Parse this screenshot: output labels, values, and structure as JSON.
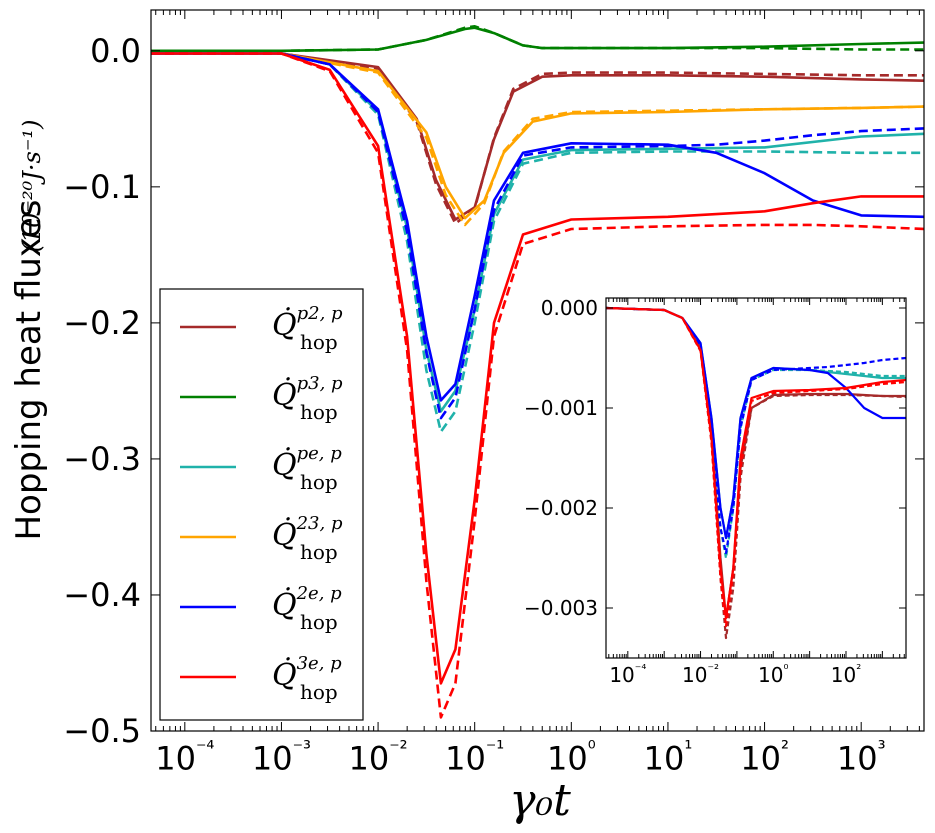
{
  "chart_data": [
    {
      "type": "line",
      "xscale": "log",
      "xlim_log10": [
        -4.35,
        3.65
      ],
      "ylim": [
        -0.5,
        0.03
      ],
      "xlabel": "γ₀t",
      "ylabel": "Hopping heat fluxes",
      "ylabel_units": "(10⁻²⁰J·s⁻¹)",
      "xticks_log10": [
        -4,
        -3,
        -2,
        -1,
        0,
        1,
        2,
        3
      ],
      "xtick_labels": [
        "10⁻⁴",
        "10⁻³",
        "10⁻²",
        "10⁻¹",
        "10⁰",
        "10¹",
        "10²",
        "10³"
      ],
      "yticks": [
        0.0,
        -0.1,
        -0.2,
        -0.3,
        -0.4,
        -0.5
      ],
      "ytick_labels": [
        "0.0",
        "−0.1",
        "−0.2",
        "−0.3",
        "−0.4",
        "−0.5"
      ],
      "legend_position": "lower-left",
      "legend_base": "Q̇",
      "legend_sub": "hop",
      "line_styles": [
        "solid",
        "dashed"
      ],
      "series": [
        {
          "name": "Q̇_hop^{p2,p}",
          "sup": "p2, p",
          "color": "#a52a2a",
          "x_log10": [
            -4.35,
            -3.0,
            -2.0,
            -1.6,
            -1.4,
            -1.2,
            -1.0,
            -0.8,
            -0.6,
            -0.3,
            0.0,
            1.0,
            2.0,
            3.0,
            3.65
          ],
          "solid": [
            -0.002,
            -0.002,
            -0.012,
            -0.05,
            -0.095,
            -0.124,
            -0.115,
            -0.065,
            -0.03,
            -0.019,
            -0.018,
            -0.018,
            -0.019,
            -0.021,
            -0.022
          ],
          "dashed": [
            -0.002,
            -0.002,
            -0.013,
            -0.052,
            -0.098,
            -0.127,
            -0.116,
            -0.064,
            -0.028,
            -0.017,
            -0.016,
            -0.016,
            -0.017,
            -0.018,
            -0.018
          ]
        },
        {
          "name": "Q̇_hop^{p3,p}",
          "sup": "p3, p",
          "color": "#008000",
          "x_log10": [
            -4.35,
            -3.0,
            -2.0,
            -1.5,
            -1.1,
            -1.0,
            -0.8,
            -0.5,
            -0.3,
            0.0,
            1.0,
            2.0,
            3.0,
            3.65
          ],
          "solid": [
            0.0,
            0.0,
            0.001,
            0.008,
            0.016,
            0.017,
            0.013,
            0.004,
            0.002,
            0.002,
            0.002,
            0.003,
            0.005,
            0.006
          ],
          "dashed": [
            0.0,
            0.0,
            0.001,
            0.008,
            0.017,
            0.018,
            0.013,
            0.004,
            0.002,
            0.002,
            0.002,
            0.002,
            0.001,
            0.001
          ]
        },
        {
          "name": "Q̇_hop^{pe,p}",
          "sup": "pe, p",
          "color": "#20b2aa",
          "x_log10": [
            -4.35,
            -3.0,
            -2.5,
            -2.0,
            -1.7,
            -1.5,
            -1.35,
            -1.2,
            -1.0,
            -0.8,
            -0.5,
            0.0,
            1.0,
            2.0,
            3.0,
            3.65
          ],
          "solid": [
            -0.002,
            -0.002,
            -0.01,
            -0.045,
            -0.13,
            -0.22,
            -0.265,
            -0.25,
            -0.19,
            -0.12,
            -0.08,
            -0.073,
            -0.072,
            -0.071,
            -0.063,
            -0.061
          ],
          "dashed": [
            -0.002,
            -0.002,
            -0.01,
            -0.047,
            -0.14,
            -0.235,
            -0.28,
            -0.265,
            -0.2,
            -0.125,
            -0.083,
            -0.075,
            -0.074,
            -0.074,
            -0.075,
            -0.075
          ]
        },
        {
          "name": "Q̇_hop^{23,p}",
          "sup": "23, p",
          "color": "#ffa500",
          "x_log10": [
            -4.35,
            -3.0,
            -2.0,
            -1.5,
            -1.3,
            -1.1,
            -0.9,
            -0.7,
            -0.4,
            0.0,
            1.0,
            2.0,
            3.0,
            3.65
          ],
          "solid": [
            -0.002,
            -0.002,
            -0.015,
            -0.06,
            -0.1,
            -0.123,
            -0.11,
            -0.075,
            -0.052,
            -0.046,
            -0.045,
            -0.043,
            -0.042,
            -0.041
          ],
          "dashed": [
            -0.002,
            -0.002,
            -0.016,
            -0.064,
            -0.106,
            -0.128,
            -0.112,
            -0.074,
            -0.05,
            -0.045,
            -0.044,
            -0.043,
            -0.042,
            -0.041
          ]
        },
        {
          "name": "Q̇_hop^{2e,p}",
          "sup": "2e, p",
          "color": "#0000ff",
          "x_log10": [
            -4.35,
            -3.0,
            -2.5,
            -2.0,
            -1.7,
            -1.5,
            -1.35,
            -1.2,
            -1.0,
            -0.8,
            -0.5,
            0.0,
            1.0,
            1.5,
            2.0,
            2.5,
            3.0,
            3.65
          ],
          "solid": [
            -0.002,
            -0.002,
            -0.01,
            -0.043,
            -0.125,
            -0.21,
            -0.257,
            -0.245,
            -0.18,
            -0.11,
            -0.075,
            -0.068,
            -0.069,
            -0.075,
            -0.09,
            -0.11,
            -0.121,
            -0.122
          ],
          "dashed": [
            -0.002,
            -0.002,
            -0.01,
            -0.045,
            -0.133,
            -0.222,
            -0.27,
            -0.255,
            -0.19,
            -0.117,
            -0.077,
            -0.071,
            -0.07,
            -0.069,
            -0.066,
            -0.062,
            -0.059,
            -0.057
          ]
        },
        {
          "name": "Q̇_hop^{3e,p}",
          "sup": "3e, p",
          "color": "#ff0000",
          "x_log10": [
            -4.35,
            -3.0,
            -2.5,
            -2.0,
            -1.7,
            -1.5,
            -1.35,
            -1.2,
            -1.0,
            -0.8,
            -0.5,
            0.0,
            1.0,
            2.0,
            2.5,
            3.0,
            3.65
          ],
          "solid": [
            -0.002,
            -0.002,
            -0.014,
            -0.07,
            -0.21,
            -0.37,
            -0.465,
            -0.44,
            -0.33,
            -0.2,
            -0.135,
            -0.124,
            -0.122,
            -0.118,
            -0.112,
            -0.107,
            -0.107
          ],
          "dashed": [
            -0.002,
            -0.002,
            -0.015,
            -0.075,
            -0.22,
            -0.39,
            -0.49,
            -0.465,
            -0.345,
            -0.21,
            -0.142,
            -0.131,
            -0.129,
            -0.128,
            -0.128,
            -0.129,
            -0.131
          ]
        }
      ]
    },
    {
      "type": "line",
      "inset": true,
      "xscale": "log",
      "xlim_log10": [
        -4.6,
        3.65
      ],
      "ylim": [
        -0.0035,
        0.0001
      ],
      "xticks_log10": [
        -4,
        -2,
        0,
        2
      ],
      "xtick_labels": [
        "10⁻⁴",
        "10⁻²",
        "10⁰",
        "10²"
      ],
      "yticks": [
        0.0,
        -0.001,
        -0.002,
        -0.003
      ],
      "ytick_labels": [
        "0.000",
        "−0.001",
        "−0.002",
        "−0.003"
      ],
      "series": [
        {
          "name": "inset-brown",
          "color": "#a52a2a",
          "x_log10": [
            -4.6,
            -3.0,
            -2.5,
            -2.0,
            -1.7,
            -1.45,
            -1.3,
            -1.1,
            -0.9,
            -0.6,
            0.0,
            1.0,
            2.0,
            3.0,
            3.65
          ],
          "solid": [
            0.0,
            -2e-05,
            -0.0001,
            -0.0004,
            -0.0012,
            -0.0025,
            -0.0031,
            -0.0026,
            -0.0016,
            -0.001,
            -0.00087,
            -0.00086,
            -0.00086,
            -0.00088,
            -0.00088
          ],
          "dashed": [
            0.0,
            -2e-05,
            -0.0001,
            -0.00042,
            -0.0013,
            -0.0027,
            -0.0033,
            -0.0028,
            -0.0017,
            -0.001,
            -0.00088,
            -0.00087,
            -0.00087,
            -0.00088,
            -0.00089
          ]
        },
        {
          "name": "inset-teal",
          "color": "#20b2aa",
          "x_log10": [
            -4.6,
            -3.0,
            -2.5,
            -2.0,
            -1.7,
            -1.45,
            -1.3,
            -1.1,
            -0.9,
            -0.6,
            0.0,
            1.0,
            2.0,
            3.0,
            3.65
          ],
          "solid": [
            0.0,
            -2e-05,
            -0.0001,
            -0.00035,
            -0.0011,
            -0.002,
            -0.0023,
            -0.0019,
            -0.0011,
            -0.0007,
            -0.0006,
            -0.00062,
            -0.00066,
            -0.0007,
            -0.0007
          ],
          "dashed": [
            0.0,
            -2e-05,
            -0.0001,
            -0.00037,
            -0.0012,
            -0.0022,
            -0.0025,
            -0.002,
            -0.0012,
            -0.00072,
            -0.00062,
            -0.00062,
            -0.00064,
            -0.00068,
            -0.00068
          ]
        },
        {
          "name": "inset-blue",
          "color": "#0000ff",
          "x_log10": [
            -4.6,
            -3.0,
            -2.5,
            -2.0,
            -1.7,
            -1.45,
            -1.3,
            -1.1,
            -0.9,
            -0.6,
            0.0,
            1.0,
            1.5,
            2.0,
            2.5,
            3.0,
            3.65
          ],
          "solid": [
            0.0,
            -2e-05,
            -0.0001,
            -0.00035,
            -0.0011,
            -0.002,
            -0.0023,
            -0.0019,
            -0.0011,
            -0.0007,
            -0.0006,
            -0.00062,
            -0.00065,
            -0.0008,
            -0.001,
            -0.0011,
            -0.0011
          ],
          "dashed": [
            0.0,
            -2e-05,
            -0.0001,
            -0.00038,
            -0.0012,
            -0.0022,
            -0.00245,
            -0.002,
            -0.0012,
            -0.00072,
            -0.00062,
            -0.0006,
            -0.00059,
            -0.00057,
            -0.00055,
            -0.00052,
            -0.0005
          ]
        },
        {
          "name": "inset-red",
          "color": "#ff0000",
          "x_log10": [
            -4.6,
            -3.0,
            -2.5,
            -2.0,
            -1.7,
            -1.45,
            -1.3,
            -1.1,
            -0.9,
            -0.6,
            0.0,
            1.0,
            2.0,
            3.0,
            3.65
          ],
          "solid": [
            0.0,
            -2e-05,
            -0.0001,
            -0.00042,
            -0.0013,
            -0.0026,
            -0.0031,
            -0.0026,
            -0.0015,
            -0.0009,
            -0.00083,
            -0.00082,
            -0.0008,
            -0.00074,
            -0.00072
          ],
          "dashed": [
            0.0,
            -2e-05,
            -0.0001,
            -0.00043,
            -0.00135,
            -0.0027,
            -0.00318,
            -0.00265,
            -0.0016,
            -0.00093,
            -0.00085,
            -0.00083,
            -0.00081,
            -0.00076,
            -0.00074
          ]
        }
      ]
    }
  ]
}
